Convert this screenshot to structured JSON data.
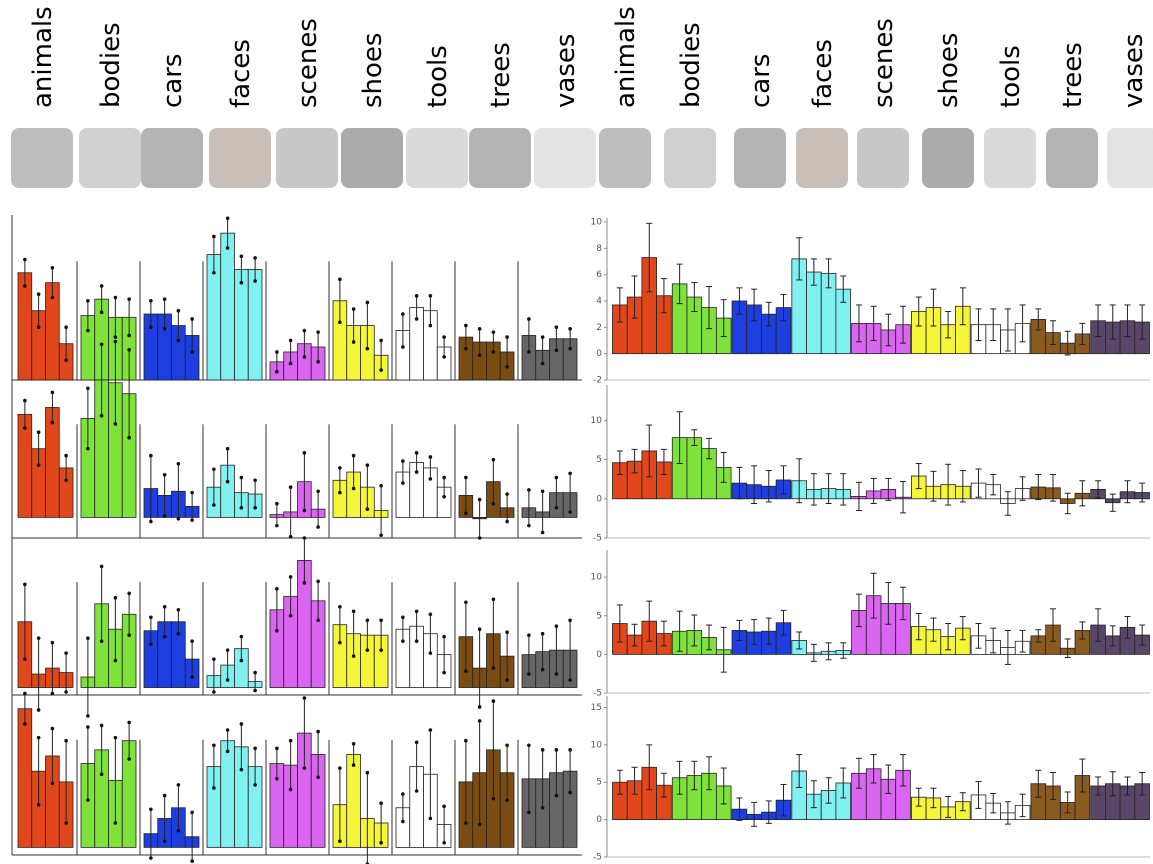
{
  "stimulus_sets": [
    {
      "labels": [
        "animals",
        "bodies",
        "cars",
        "faces",
        "scenes",
        "shoes",
        "tools",
        "trees",
        "vases"
      ]
    },
    {
      "labels": [
        "animals",
        "bodies",
        "cars",
        "faces",
        "scenes",
        "shoes",
        "tools",
        "trees",
        "vases"
      ]
    }
  ],
  "chart_data": [
    {
      "type": "grouped-bar",
      "colors": [
        "#e2471c",
        "#7fe23a",
        "#1e3ee0",
        "#80f0f0",
        "#d965f0",
        "#f5f53a",
        "#ffffff",
        "#7a4c12",
        "#666666"
      ],
      "ylim": [
        0,
        10
      ],
      "values": [
        [
          6.5,
          4.2,
          5.9,
          2.2
        ],
        [
          3.9,
          4.9,
          3.8,
          3.8
        ],
        [
          4.0,
          4.0,
          3.3,
          2.7
        ],
        [
          7.6,
          8.9,
          6.7,
          6.7
        ],
        [
          1.1,
          1.7,
          2.2,
          2.0
        ],
        [
          4.8,
          3.3,
          3.3,
          1.5
        ],
        [
          3.0,
          4.4,
          4.2,
          2.0
        ],
        [
          2.6,
          2.3,
          2.3,
          1.7
        ],
        [
          2.7,
          1.8,
          2.5,
          2.5
        ]
      ],
      "errors": [
        [
          0.8,
          1.0,
          0.9,
          1.0
        ],
        [
          0.9,
          0.8,
          1.2,
          1.1
        ],
        [
          0.8,
          0.9,
          0.9,
          1.0
        ],
        [
          1.1,
          0.9,
          0.8,
          0.7
        ],
        [
          0.6,
          0.7,
          0.8,
          0.9
        ],
        [
          1.3,
          1.0,
          1.4,
          0.9
        ],
        [
          1.0,
          0.7,
          0.9,
          0.6
        ],
        [
          0.7,
          0.8,
          0.6,
          0.9
        ],
        [
          1.0,
          0.8,
          0.7,
          0.6
        ]
      ]
    },
    {
      "type": "grouped-bar",
      "colors": [
        "#e2471c",
        "#7fe23a",
        "#1e3ee0",
        "#80f0f0",
        "#d965f0",
        "#f5f53a",
        "#ffffff",
        "#7a4c12",
        "#666666"
      ],
      "ylim": [
        -1.5,
        10
      ],
      "values": [
        [
          7.5,
          5.0,
          8.0,
          3.6
        ],
        [
          7.2,
          10.0,
          9.8,
          9.0
        ],
        [
          2.1,
          1.6,
          1.9,
          0.8
        ],
        [
          2.2,
          3.8,
          1.8,
          1.7
        ],
        [
          0.2,
          0.4,
          2.6,
          0.6
        ],
        [
          2.7,
          3.3,
          2.2,
          0.5
        ],
        [
          3.3,
          4.0,
          3.6,
          2.2
        ],
        [
          1.6,
          -0.1,
          2.6,
          0.7
        ],
        [
          0.7,
          0.4,
          1.8,
          1.8
        ]
      ],
      "errors": [
        [
          1.0,
          1.2,
          1.1,
          0.9
        ],
        [
          2.2,
          2.6,
          3.0,
          3.2
        ],
        [
          2.4,
          1.5,
          2.0,
          1.0
        ],
        [
          1.3,
          1.2,
          1.1,
          1.0
        ],
        [
          0.8,
          1.8,
          2.1,
          1.3
        ],
        [
          0.9,
          1.2,
          1.6,
          1.8
        ],
        [
          0.8,
          0.7,
          0.8,
          0.7
        ],
        [
          1.3,
          1.4,
          1.6,
          1.0
        ],
        [
          1.3,
          1.5,
          1.1,
          1.4
        ]
      ]
    },
    {
      "type": "grouped-bar",
      "colors": [
        "#e2471c",
        "#7fe23a",
        "#1e3ee0",
        "#80f0f0",
        "#d965f0",
        "#f5f53a",
        "#ffffff",
        "#7a4c12",
        "#666666"
      ],
      "ylim": [
        -0.5,
        10
      ],
      "values": [
        [
          4.4,
          0.9,
          1.3,
          1.0
        ],
        [
          0.7,
          5.6,
          3.9,
          4.9
        ],
        [
          3.8,
          4.4,
          4.4,
          1.9
        ],
        [
          0.8,
          1.5,
          2.6,
          0.4
        ],
        [
          5.2,
          6.1,
          8.5,
          5.8
        ],
        [
          4.2,
          3.6,
          3.5,
          3.5
        ],
        [
          3.9,
          4.1,
          3.6,
          2.2
        ],
        [
          3.4,
          1.3,
          3.6,
          2.1
        ],
        [
          2.2,
          2.4,
          2.5,
          2.5
        ]
      ],
      "errors": [
        [
          2.5,
          2.4,
          1.7,
          1.3
        ],
        [
          2.6,
          2.5,
          2.1,
          1.4
        ],
        [
          0.9,
          1.0,
          0.8,
          1.2
        ],
        [
          1.1,
          1.0,
          0.8,
          0.6
        ],
        [
          1.4,
          1.3,
          1.5,
          1.3
        ],
        [
          1.2,
          1.5,
          1.0,
          1.0
        ],
        [
          0.8,
          1.0,
          1.3,
          1.2
        ],
        [
          2.3,
          2.6,
          2.3,
          1.6
        ],
        [
          1.3,
          1.2,
          1.6,
          2.0
        ]
      ]
    },
    {
      "type": "grouped-bar",
      "colors": [
        "#e2471c",
        "#7fe23a",
        "#1e3ee0",
        "#80f0f0",
        "#d965f0",
        "#f5f53a",
        "#ffffff",
        "#7a4c12",
        "#666666"
      ],
      "ylim": [
        -0.5,
        10
      ],
      "values": [
        [
          9.1,
          5.0,
          6.0,
          4.3
        ],
        [
          5.5,
          6.4,
          4.4,
          7.0
        ],
        [
          0.9,
          1.9,
          2.6,
          0.7
        ],
        [
          5.3,
          7.0,
          6.6,
          5.3
        ],
        [
          5.5,
          5.4,
          7.5,
          6.1
        ],
        [
          2.8,
          6.1,
          1.9,
          1.6
        ],
        [
          2.6,
          5.3,
          4.8,
          1.5
        ],
        [
          4.3,
          4.9,
          6.4,
          4.9
        ],
        [
          4.5,
          4.5,
          4.9,
          5.0
        ]
      ],
      "errors": [
        [
          1.0,
          2.2,
          1.8,
          2.7
        ],
        [
          2.4,
          1.6,
          2.8,
          1.2
        ],
        [
          1.6,
          1.5,
          1.5,
          1.6
        ],
        [
          1.4,
          0.7,
          1.5,
          1.2
        ],
        [
          1.0,
          1.6,
          2.3,
          1.5
        ],
        [
          2.4,
          0.7,
          3.0,
          1.3
        ],
        [
          0.9,
          1.6,
          2.9,
          1.2
        ],
        [
          2.7,
          3.4,
          3.2,
          1.8
        ],
        [
          2.2,
          1.9,
          1.5,
          1.4
        ]
      ]
    },
    {
      "type": "grouped-bar",
      "colors": [
        "#e2471c",
        "#7fe23a",
        "#1e3ee0",
        "#80f0f0",
        "#d965f0",
        "#f5f53a",
        "#ffffff",
        "#8a5a1e",
        "#5a4668"
      ],
      "ylim": [
        -2,
        10
      ],
      "yticks": [
        -2,
        0,
        2,
        4,
        6,
        8,
        10
      ],
      "values": [
        [
          3.7,
          4.3,
          7.3,
          4.4
        ],
        [
          5.3,
          4.3,
          3.5,
          2.7
        ],
        [
          4.0,
          3.7,
          3.0,
          3.5
        ],
        [
          7.2,
          6.2,
          6.1,
          4.9
        ],
        [
          2.3,
          2.3,
          1.8,
          2.2
        ],
        [
          3.2,
          3.5,
          2.2,
          3.6
        ],
        [
          2.2,
          2.2,
          1.8,
          2.3
        ],
        [
          2.6,
          1.6,
          0.8,
          1.5
        ],
        [
          2.5,
          2.4,
          2.5,
          2.4
        ]
      ],
      "errors": [
        [
          1.3,
          1.6,
          2.6,
          1.3
        ],
        [
          1.5,
          1.1,
          1.6,
          1.4
        ],
        [
          1.0,
          1.2,
          0.9,
          1.0
        ],
        [
          1.6,
          1.0,
          1.1,
          1.0
        ],
        [
          1.4,
          1.3,
          1.2,
          1.4
        ],
        [
          1.1,
          1.4,
          1.0,
          1.4
        ],
        [
          1.2,
          1.2,
          1.6,
          1.4
        ],
        [
          0.8,
          0.9,
          0.9,
          0.8
        ],
        [
          1.2,
          1.3,
          1.2,
          1.3
        ]
      ]
    },
    {
      "type": "grouped-bar",
      "colors": [
        "#e2471c",
        "#7fe23a",
        "#1e3ee0",
        "#80f0f0",
        "#d965f0",
        "#f5f53a",
        "#ffffff",
        "#8a5a1e",
        "#5a4668"
      ],
      "ylim": [
        -5,
        14
      ],
      "yticks": [
        -5,
        0,
        5,
        10
      ],
      "values": [
        [
          4.6,
          4.8,
          6.1,
          4.7
        ],
        [
          7.8,
          7.8,
          6.4,
          4.0
        ],
        [
          2.0,
          1.8,
          1.6,
          2.4
        ],
        [
          2.3,
          1.2,
          1.3,
          1.2
        ],
        [
          0.3,
          1.0,
          1.2,
          0.2
        ],
        [
          2.9,
          1.6,
          1.8,
          1.6
        ],
        [
          2.0,
          1.8,
          -0.6,
          1.3
        ],
        [
          1.5,
          1.4,
          -0.6,
          0.7
        ],
        [
          1.2,
          -0.5,
          0.9,
          0.8
        ]
      ],
      "errors": [
        [
          1.5,
          1.5,
          3.3,
          1.6
        ],
        [
          3.3,
          1.0,
          1.3,
          1.9
        ],
        [
          2.0,
          2.4,
          2.0,
          1.8
        ],
        [
          2.8,
          2.0,
          1.9,
          2.0
        ],
        [
          1.8,
          1.6,
          1.4,
          2.0
        ],
        [
          1.6,
          1.9,
          2.6,
          2.0
        ],
        [
          1.8,
          1.3,
          1.5,
          1.5
        ],
        [
          1.6,
          1.7,
          1.3,
          1.6
        ],
        [
          1.1,
          1.1,
          1.4,
          1.2
        ]
      ]
    },
    {
      "type": "grouped-bar",
      "colors": [
        "#e2471c",
        "#7fe23a",
        "#1e3ee0",
        "#80f0f0",
        "#d965f0",
        "#f5f53a",
        "#ffffff",
        "#8a5a1e",
        "#5a4668"
      ],
      "ylim": [
        -5,
        13
      ],
      "yticks": [
        -5,
        0,
        5,
        10
      ],
      "values": [
        [
          4.0,
          2.5,
          4.3,
          2.7
        ],
        [
          3.0,
          3.1,
          2.2,
          0.6
        ],
        [
          3.1,
          2.9,
          3.0,
          4.1
        ],
        [
          1.8,
          0.2,
          0.4,
          0.5
        ],
        [
          5.7,
          7.6,
          6.6,
          6.6
        ],
        [
          3.6,
          3.2,
          2.3,
          3.4
        ],
        [
          2.4,
          1.8,
          0.9,
          1.7
        ],
        [
          2.4,
          3.8,
          0.8,
          3.1
        ],
        [
          3.8,
          2.4,
          3.5,
          2.5
        ]
      ],
      "errors": [
        [
          2.4,
          1.4,
          2.6,
          1.6
        ],
        [
          2.6,
          2.0,
          1.6,
          2.9
        ],
        [
          1.3,
          1.6,
          1.7,
          1.6
        ],
        [
          1.1,
          1.1,
          1.1,
          1.0
        ],
        [
          2.1,
          2.9,
          2.7,
          2.1
        ],
        [
          1.7,
          1.5,
          1.7,
          1.5
        ],
        [
          1.6,
          1.6,
          2.2,
          1.4
        ],
        [
          0.8,
          2.1,
          1.2,
          1.1
        ],
        [
          2.1,
          1.3,
          1.4,
          1.3
        ]
      ]
    },
    {
      "type": "grouped-bar",
      "colors": [
        "#e2471c",
        "#7fe23a",
        "#1e3ee0",
        "#80f0f0",
        "#d965f0",
        "#f5f53a",
        "#ffffff",
        "#8a5a1e",
        "#5a4668"
      ],
      "ylim": [
        -5,
        16
      ],
      "yticks": [
        -5,
        0,
        5,
        10,
        15
      ],
      "values": [
        [
          5.0,
          5.2,
          7.0,
          4.6
        ],
        [
          5.6,
          5.9,
          6.2,
          4.5
        ],
        [
          1.4,
          0.7,
          1.0,
          2.6
        ],
        [
          6.5,
          3.4,
          3.9,
          4.9
        ],
        [
          6.2,
          6.8,
          5.4,
          6.6
        ],
        [
          3.0,
          2.9,
          1.7,
          2.4
        ],
        [
          3.3,
          2.2,
          0.9,
          1.9
        ],
        [
          4.8,
          4.5,
          2.3,
          5.9
        ],
        [
          4.5,
          4.8,
          4.5,
          4.8
        ]
      ],
      "errors": [
        [
          1.6,
          1.8,
          3.0,
          1.6
        ],
        [
          2.2,
          1.9,
          2.2,
          2.4
        ],
        [
          1.5,
          1.6,
          1.5,
          2.1
        ],
        [
          2.2,
          1.8,
          1.7,
          2.0
        ],
        [
          2.0,
          1.9,
          1.9,
          2.1
        ],
        [
          1.2,
          1.3,
          1.4,
          1.2
        ],
        [
          1.8,
          1.3,
          1.5,
          1.5
        ],
        [
          1.8,
          1.8,
          1.4,
          2.2
        ],
        [
          1.2,
          1.6,
          1.2,
          1.5
        ]
      ]
    }
  ]
}
